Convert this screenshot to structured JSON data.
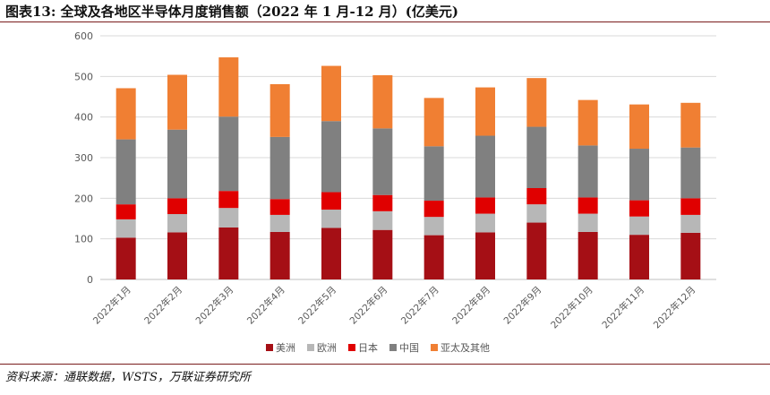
{
  "header": {
    "title": "图表13:  全球及各地区半导体月度销售额（2022 年 1 月-12 月）(亿美元)"
  },
  "footer": {
    "source": "资料来源：通联数据，WSTS，万联证券研究所"
  },
  "chart_data": {
    "type": "bar",
    "stacked": true,
    "title": "全球及各地区半导体月度销售额（2022 年 1 月-12 月）(亿美元)",
    "xlabel": "",
    "ylabel": "",
    "ylim": [
      0,
      600
    ],
    "yticks": [
      "0",
      "100",
      "200",
      "300",
      "400",
      "500",
      "600"
    ],
    "grid": true,
    "legend_position": "bottom",
    "categories": [
      "2022年1月",
      "2022年2月",
      "2022年3月",
      "2022年4月",
      "2022年5月",
      "2022年6月",
      "2022年7月",
      "2022年8月",
      "2022年9月",
      "2022年10月",
      "2022年11月",
      "2022年12月"
    ],
    "series": [
      {
        "name": "美洲",
        "color": "#a50f15",
        "values": [
          103,
          116,
          128,
          117,
          127,
          122,
          109,
          116,
          140,
          117,
          110,
          115
        ]
      },
      {
        "name": "欧洲",
        "color": "#b7b7b7",
        "values": [
          45,
          45,
          48,
          42,
          45,
          46,
          45,
          46,
          45,
          45,
          45,
          44
        ]
      },
      {
        "name": "日本",
        "color": "#e00000",
        "values": [
          37,
          39,
          42,
          39,
          43,
          40,
          40,
          40,
          40,
          40,
          40,
          41
        ]
      },
      {
        "name": "中国",
        "color": "#808080",
        "values": [
          160,
          169,
          183,
          153,
          175,
          164,
          134,
          152,
          151,
          128,
          127,
          125
        ]
      },
      {
        "name": "亚太及其他",
        "color": "#f07f33",
        "values": [
          126,
          135,
          146,
          130,
          136,
          131,
          119,
          119,
          120,
          112,
          109,
          110
        ]
      }
    ]
  }
}
